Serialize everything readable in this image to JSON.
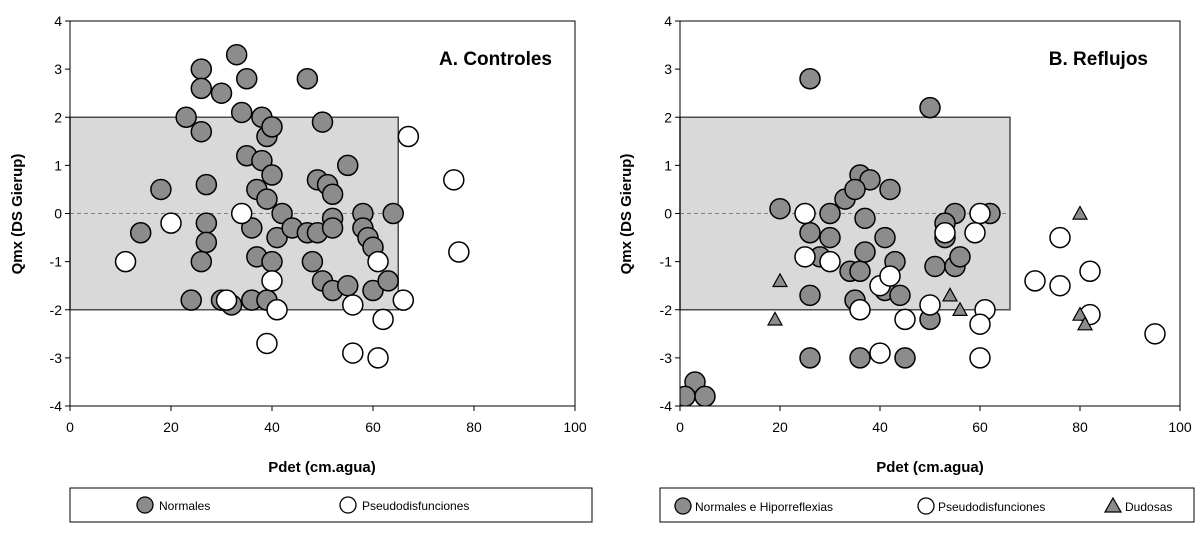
{
  "colors": {
    "filled_marker": "#8c8c8c",
    "region_fill": "#d9d9d9",
    "empty_marker": "#ffffff",
    "stroke": "#000000"
  },
  "chart_data": [
    {
      "type": "scatter",
      "title": "A. Controles",
      "xlabel": "Pdet (cm.agua)",
      "ylabel": "Qmx  (DS Gierup)",
      "xlim": [
        0,
        100
      ],
      "ylim": [
        -4,
        4
      ],
      "x_ticks": [
        "0",
        "20",
        "40",
        "60",
        "80",
        "100"
      ],
      "y_ticks": [
        "4",
        "3",
        "2",
        "1",
        "0",
        "-1",
        "-2",
        "-3",
        "-4"
      ],
      "region": {
        "x": [
          0,
          65
        ],
        "y": [
          -2,
          2
        ]
      },
      "reference_line_y": 0,
      "legend_position": "bottom",
      "series": [
        {
          "name": "Normales",
          "marker": "filled-circle",
          "points": [
            [
              26,
              3.0
            ],
            [
              33,
              3.3
            ],
            [
              35,
              2.8
            ],
            [
              47,
              2.8
            ],
            [
              30,
              2.5
            ],
            [
              26,
              2.6
            ],
            [
              23,
              2.0
            ],
            [
              26,
              1.7
            ],
            [
              34,
              2.1
            ],
            [
              38,
              2.0
            ],
            [
              39,
              1.6
            ],
            [
              40,
              1.8
            ],
            [
              50,
              1.9
            ],
            [
              35,
              1.2
            ],
            [
              38,
              1.1
            ],
            [
              40,
              0.8
            ],
            [
              55,
              1.0
            ],
            [
              18,
              0.5
            ],
            [
              27,
              0.6
            ],
            [
              37,
              0.5
            ],
            [
              49,
              0.7
            ],
            [
              51,
              0.6
            ],
            [
              52,
              0.4
            ],
            [
              39,
              0.3
            ],
            [
              42,
              0.0
            ],
            [
              52,
              -0.1
            ],
            [
              58,
              0.0
            ],
            [
              64,
              0.0
            ],
            [
              14,
              -0.4
            ],
            [
              27,
              -0.2
            ],
            [
              36,
              -0.3
            ],
            [
              41,
              -0.5
            ],
            [
              44,
              -0.3
            ],
            [
              47,
              -0.4
            ],
            [
              49,
              -0.4
            ],
            [
              52,
              -0.3
            ],
            [
              58,
              -0.3
            ],
            [
              27,
              -0.6
            ],
            [
              59,
              -0.5
            ],
            [
              26,
              -1.0
            ],
            [
              37,
              -0.9
            ],
            [
              40,
              -1.0
            ],
            [
              48,
              -1.0
            ],
            [
              60,
              -0.7
            ],
            [
              50,
              -1.4
            ],
            [
              52,
              -1.6
            ],
            [
              55,
              -1.5
            ],
            [
              60,
              -1.6
            ],
            [
              63,
              -1.4
            ],
            [
              24,
              -1.8
            ],
            [
              36,
              -1.8
            ],
            [
              39,
              -1.8
            ],
            [
              32,
              -1.9
            ],
            [
              30,
              -1.8
            ]
          ]
        },
        {
          "name": "Pseudodisfunciones",
          "marker": "open-circle",
          "points": [
            [
              67,
              1.6
            ],
            [
              76,
              0.7
            ],
            [
              34,
              0.0
            ],
            [
              20,
              -0.2
            ],
            [
              77,
              -0.8
            ],
            [
              11,
              -1.0
            ],
            [
              61,
              -1.0
            ],
            [
              40,
              -1.4
            ],
            [
              31,
              -1.8
            ],
            [
              41,
              -2.0
            ],
            [
              56,
              -1.9
            ],
            [
              66,
              -1.8
            ],
            [
              39,
              -2.7
            ],
            [
              56,
              -2.9
            ],
            [
              62,
              -2.2
            ],
            [
              61,
              -3.0
            ]
          ]
        }
      ]
    },
    {
      "type": "scatter",
      "title": "B. Reflujos",
      "xlabel": "Pdet (cm.agua)",
      "ylabel": "Qmx  (DS Gierup)",
      "xlim": [
        0,
        100
      ],
      "ylim": [
        -4,
        4
      ],
      "x_ticks": [
        "0",
        "20",
        "40",
        "60",
        "80",
        "100"
      ],
      "y_ticks": [
        "4",
        "3",
        "2",
        "1",
        "0",
        "-1",
        "-2",
        "-3",
        "-4"
      ],
      "region": {
        "x": [
          0,
          66
        ],
        "y": [
          -2,
          2
        ]
      },
      "reference_line_y": 0,
      "legend_position": "bottom",
      "series": [
        {
          "name": "Normales e Hiporreflexias",
          "marker": "filled-circle",
          "points": [
            [
              26,
              2.8
            ],
            [
              50,
              2.2
            ],
            [
              20,
              0.1
            ],
            [
              30,
              0.0
            ],
            [
              33,
              0.3
            ],
            [
              36,
              0.8
            ],
            [
              38,
              0.7
            ],
            [
              42,
              0.5
            ],
            [
              35,
              0.5
            ],
            [
              37,
              -0.1
            ],
            [
              55,
              0.0
            ],
            [
              62,
              0.0
            ],
            [
              26,
              -0.4
            ],
            [
              30,
              -0.5
            ],
            [
              41,
              -0.5
            ],
            [
              53,
              -0.2
            ],
            [
              53,
              -0.5
            ],
            [
              28,
              -0.9
            ],
            [
              34,
              -1.2
            ],
            [
              36,
              -1.2
            ],
            [
              37,
              -0.8
            ],
            [
              43,
              -1.0
            ],
            [
              51,
              -1.1
            ],
            [
              55,
              -1.1
            ],
            [
              56,
              -0.9
            ],
            [
              26,
              -1.7
            ],
            [
              35,
              -1.8
            ],
            [
              41,
              -1.6
            ],
            [
              44,
              -1.7
            ],
            [
              50,
              -2.2
            ],
            [
              26,
              -3.0
            ],
            [
              36,
              -3.0
            ],
            [
              45,
              -3.0
            ],
            [
              3,
              -3.5
            ],
            [
              1,
              -3.8
            ],
            [
              5,
              -3.8
            ]
          ]
        },
        {
          "name": "Pseudodisfunciones",
          "marker": "open-circle",
          "points": [
            [
              25,
              0.0
            ],
            [
              60,
              0.0
            ],
            [
              25,
              -0.9
            ],
            [
              30,
              -1.0
            ],
            [
              40,
              -1.5
            ],
            [
              42,
              -1.3
            ],
            [
              36,
              -2.0
            ],
            [
              45,
              -2.2
            ],
            [
              50,
              -1.9
            ],
            [
              53,
              -0.4
            ],
            [
              59,
              -0.4
            ],
            [
              61,
              -2.0
            ],
            [
              60,
              -2.3
            ],
            [
              40,
              -2.9
            ],
            [
              60,
              -3.0
            ],
            [
              71,
              -1.4
            ],
            [
              76,
              -1.5
            ],
            [
              76,
              -0.5
            ],
            [
              82,
              -1.2
            ],
            [
              82,
              -2.1
            ],
            [
              95,
              -2.5
            ]
          ]
        },
        {
          "name": "Dudosas",
          "marker": "triangle",
          "points": [
            [
              80,
              0.0
            ],
            [
              20,
              -1.4
            ],
            [
              19,
              -2.2
            ],
            [
              54,
              -1.7
            ],
            [
              56,
              -2.0
            ],
            [
              80,
              -2.1
            ],
            [
              81,
              -2.3
            ]
          ]
        }
      ]
    }
  ]
}
